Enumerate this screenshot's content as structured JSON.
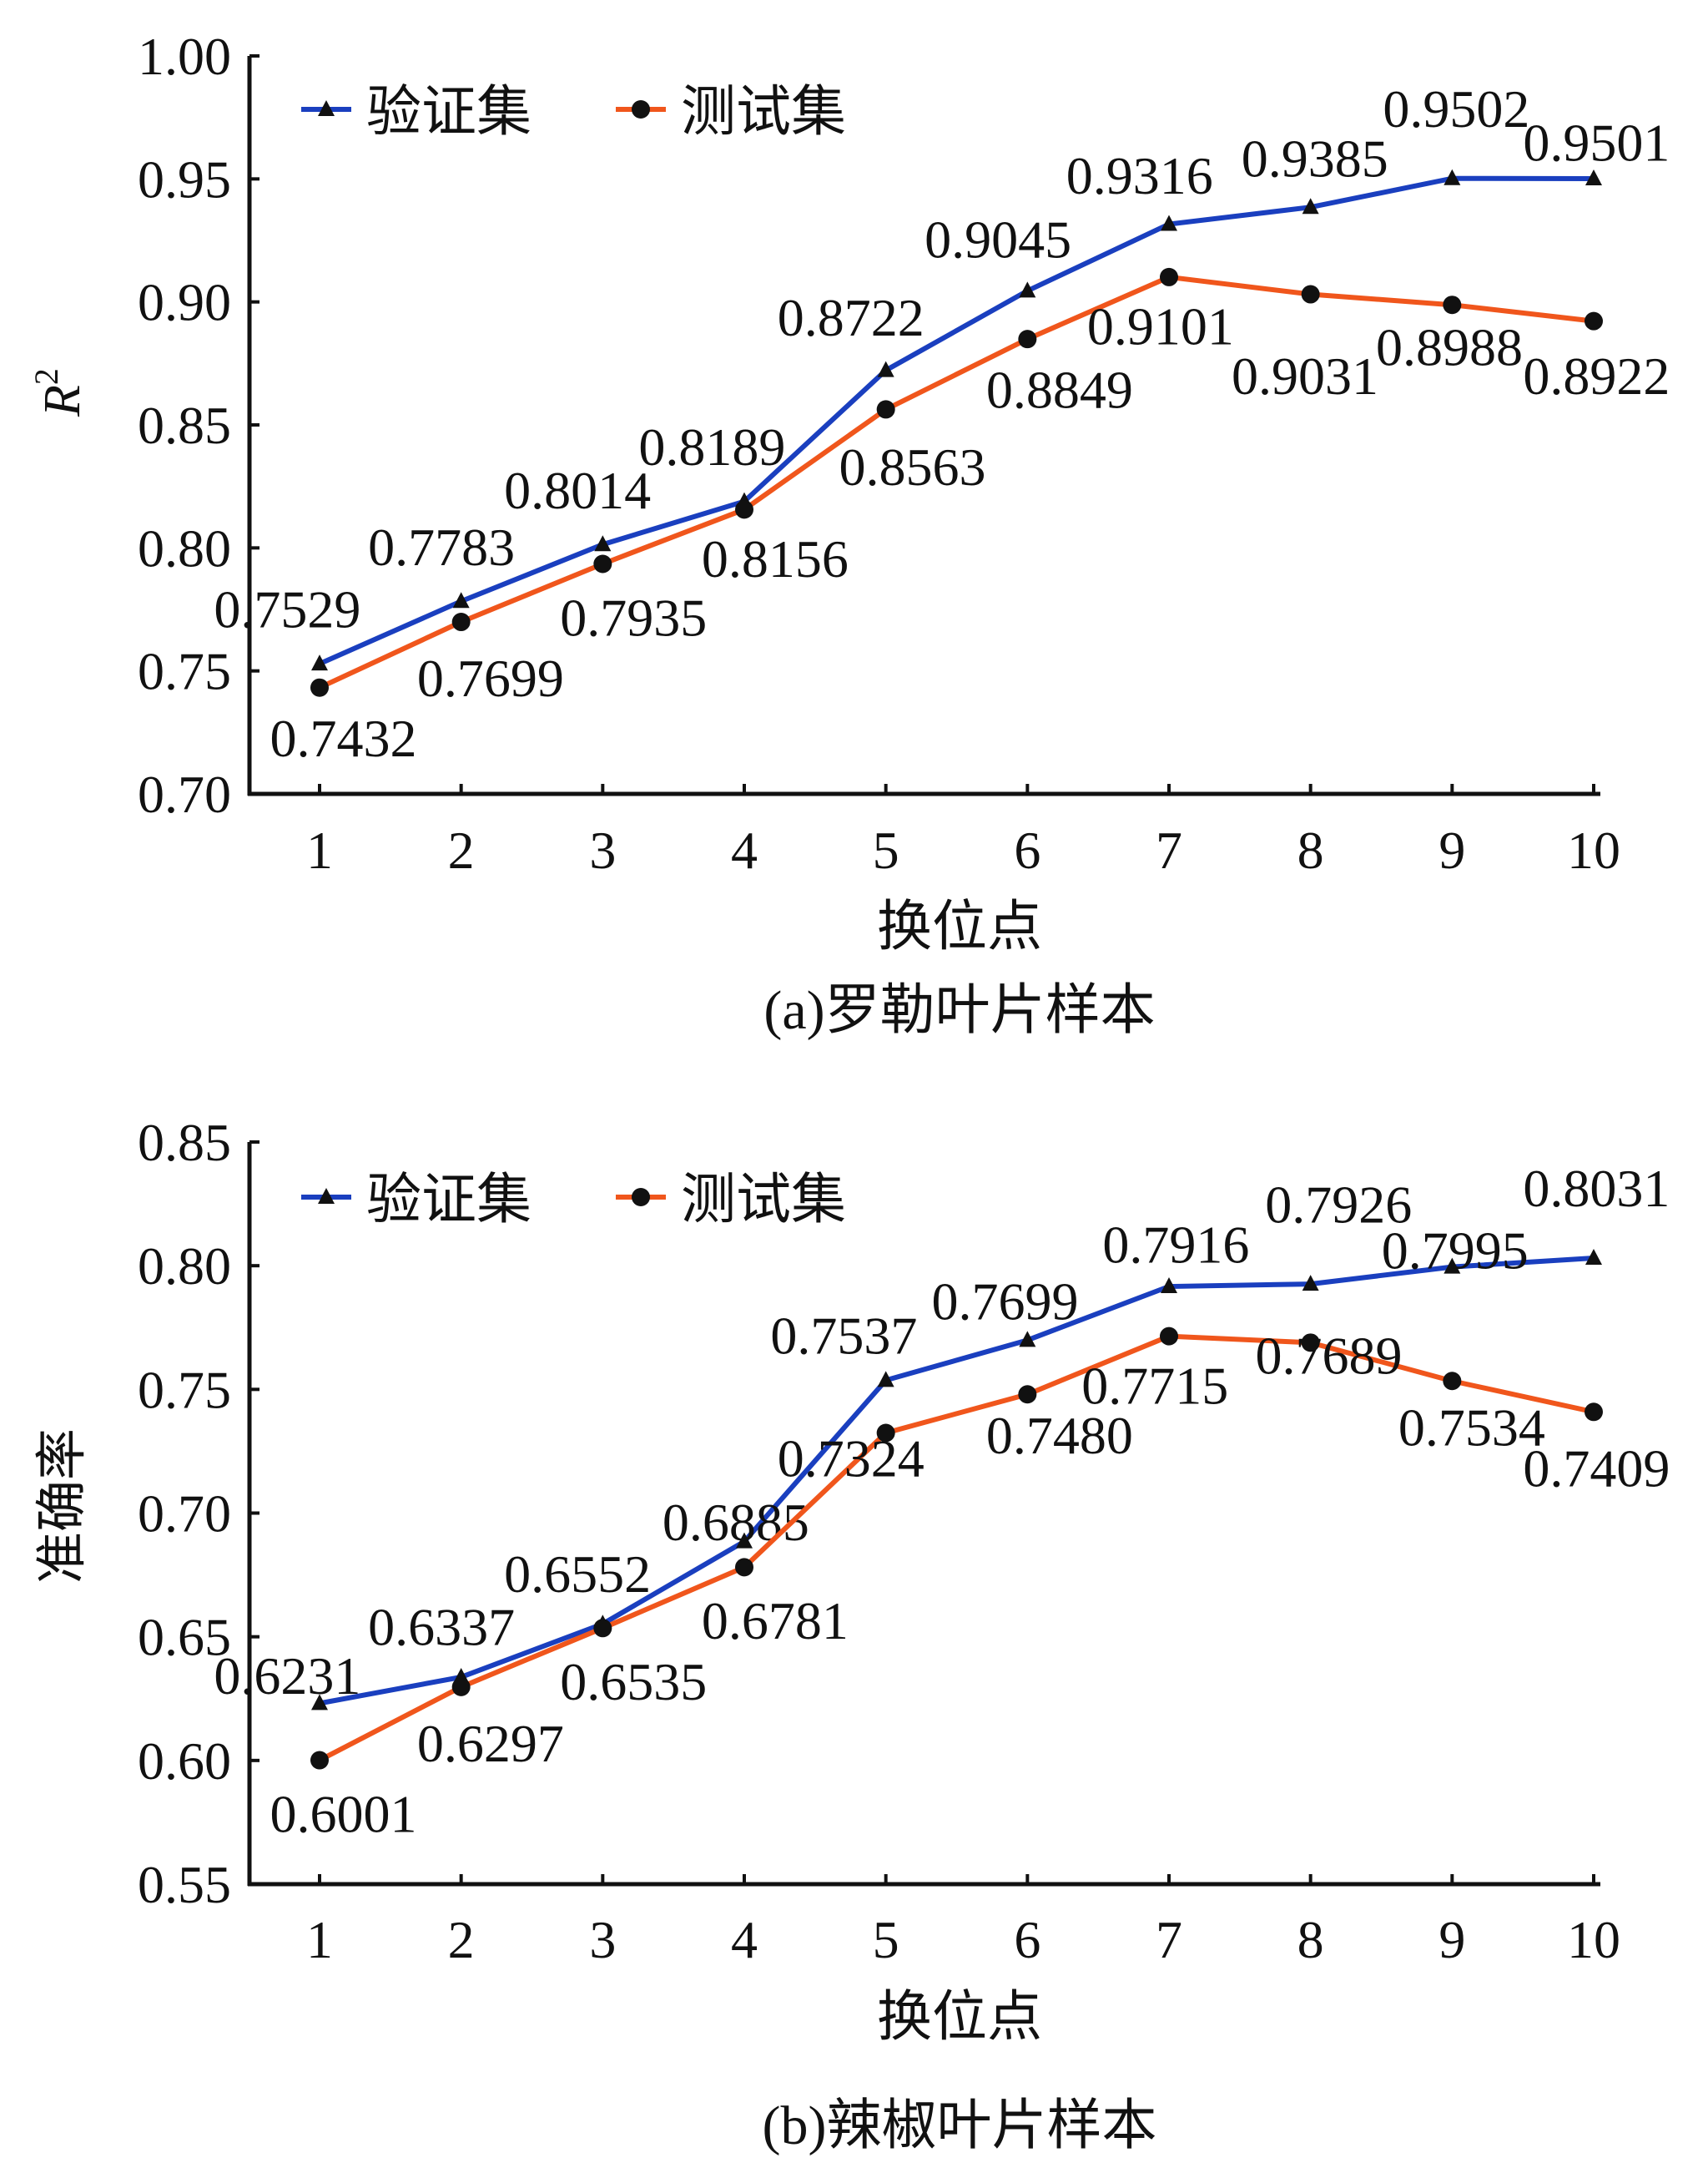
{
  "colors": {
    "validation": "#1a3fbf",
    "test": "#f0561c",
    "axis": "#111111"
  },
  "chart_data": [
    {
      "type": "line",
      "caption": "(a)罗勒叶片样本",
      "xlabel": "换位点",
      "ylabel": "R",
      "ylabel_superscript": "2",
      "categories": [
        "1",
        "2",
        "3",
        "4",
        "5",
        "6",
        "7",
        "8",
        "9",
        "10"
      ],
      "ylim": [
        0.7,
        1.0
      ],
      "yticks": [
        "0.70",
        "0.75",
        "0.80",
        "0.85",
        "0.90",
        "0.95",
        "1.00"
      ],
      "grid": false,
      "legend_position": "top-left",
      "series": [
        {
          "name": "验证集",
          "marker": "triangle",
          "values": [
            0.7529,
            0.7783,
            0.8014,
            0.8189,
            0.8722,
            0.9045,
            0.9316,
            0.9385,
            0.9502,
            0.9501
          ],
          "labels": [
            "0.7529",
            "0.7783",
            "0.8014",
            "0.8189",
            "0.8722",
            "0.9045",
            "0.9316",
            "0.9385",
            "0.9502",
            "0.9501"
          ]
        },
        {
          "name": "测试集",
          "marker": "circle",
          "values": [
            0.7432,
            0.7699,
            0.7935,
            0.8156,
            0.8563,
            0.8849,
            0.9101,
            0.9031,
            0.8988,
            0.8922
          ],
          "labels": [
            "0.7432",
            "0.7699",
            "0.7935",
            "0.8156",
            "0.8563",
            "0.8849",
            "0.9101",
            "0.9031",
            "0.8988",
            "0.8922"
          ]
        }
      ]
    },
    {
      "type": "line",
      "caption": "(b)辣椒叶片样本",
      "xlabel": "换位点",
      "ylabel": "准确率",
      "ylabel_superscript": "",
      "categories": [
        "1",
        "2",
        "3",
        "4",
        "5",
        "6",
        "7",
        "8",
        "9",
        "10"
      ],
      "ylim": [
        0.55,
        0.85
      ],
      "yticks": [
        "0.55",
        "0.60",
        "0.65",
        "0.70",
        "0.75",
        "0.80",
        "0.85"
      ],
      "grid": false,
      "legend_position": "top-left",
      "series": [
        {
          "name": "验证集",
          "marker": "triangle",
          "values": [
            0.6231,
            0.6337,
            0.6552,
            0.6885,
            0.7537,
            0.7699,
            0.7916,
            0.7926,
            0.7995,
            0.8031
          ],
          "labels": [
            "0.6231",
            "0.6337",
            "0.6552",
            "0.6885",
            "0.7537",
            "0.7699",
            "0.7916",
            "0.7926",
            "0.7995",
            "0.8031"
          ]
        },
        {
          "name": "测试集",
          "marker": "circle",
          "values": [
            0.6001,
            0.6297,
            0.6535,
            0.6781,
            0.7324,
            0.748,
            0.7715,
            0.7689,
            0.7534,
            0.7409
          ],
          "labels": [
            "0.6001",
            "0.6297",
            "0.6535",
            "0.6781",
            "0.7324",
            "0.7480",
            "0.7715",
            "0.7689",
            "0.7534",
            "0.7409"
          ]
        }
      ]
    }
  ]
}
